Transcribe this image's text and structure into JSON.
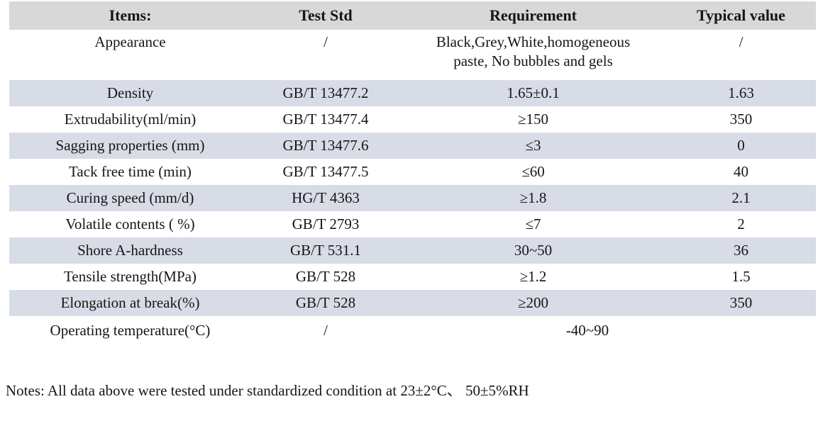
{
  "table": {
    "columns": [
      "Items:",
      "Test Std",
      "Requirement",
      "Typical value"
    ],
    "rows": [
      {
        "cells": [
          "Appearance",
          "/",
          "Black,Grey,White,homogeneous\npaste, No bubbles and gels",
          "/"
        ]
      },
      {
        "cells": [
          "Density",
          "GB/T 13477.2",
          "1.65±0.1",
          "1.63"
        ]
      },
      {
        "cells": [
          "Extrudability(ml/min)",
          "GB/T 13477.4",
          "≥150",
          "350"
        ]
      },
      {
        "cells": [
          "Sagging properties (mm)",
          "GB/T 13477.6",
          "≤3",
          "0"
        ]
      },
      {
        "cells": [
          "Tack free time (min)",
          "GB/T 13477.5",
          "≤60",
          "40"
        ]
      },
      {
        "cells": [
          "Curing speed (mm/d)",
          "HG/T 4363",
          "≥1.8",
          "2.1"
        ]
      },
      {
        "cells": [
          "Volatile contents ( %)",
          "GB/T 2793",
          "≤7",
          "2"
        ]
      },
      {
        "cells": [
          "Shore A-hardness",
          "GB/T 531.1",
          "30~50",
          "36"
        ]
      },
      {
        "cells": [
          "Tensile strength(MPa)",
          "GB/T 528",
          "≥1.2",
          "1.5"
        ]
      },
      {
        "cells": [
          "Elongation at break(%)",
          "GB/T 528",
          "≥200",
          "350"
        ]
      },
      {
        "cells": [
          "Operating temperature(°C)",
          "/",
          "-40~90"
        ],
        "spans": [
          1,
          1,
          2
        ]
      }
    ],
    "striped_row_indices": [
      1,
      3,
      5,
      7,
      9
    ]
  },
  "notes": {
    "text": "Notes: All data above were tested under standardized condition at 23±2°C、 50±5%RH"
  },
  "colors": {
    "header_bg": "#d8d8d8",
    "stripe_bg": "#d7dce6",
    "text": "#161616",
    "background": "#ffffff"
  }
}
